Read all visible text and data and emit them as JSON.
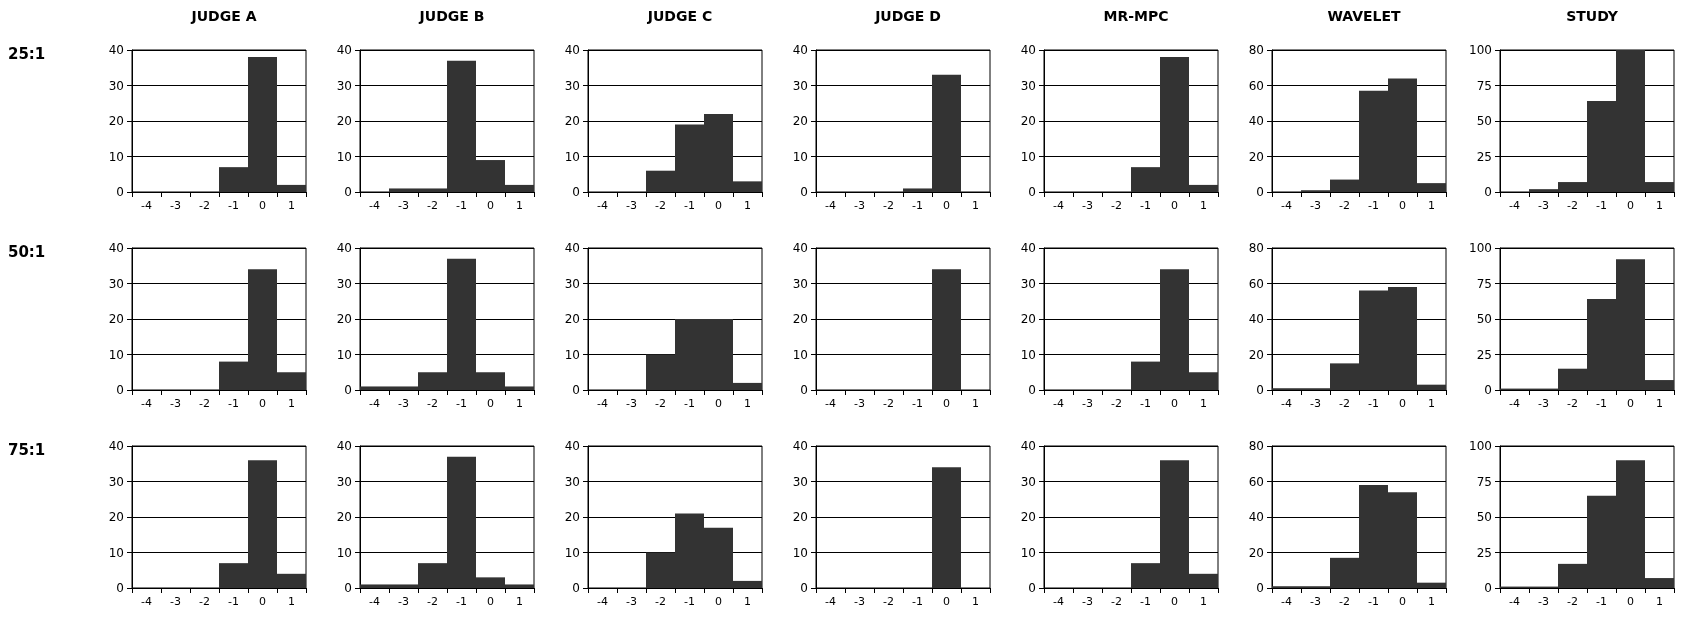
{
  "chart_data": [
    {
      "type": "bar",
      "title": "JUDGE A",
      "ylabel": "25:1",
      "categories": [
        "-4",
        "-3",
        "-2",
        "-1",
        "0",
        "1"
      ],
      "values": [
        0,
        0,
        0,
        7,
        38,
        2
      ],
      "color": "#333333",
      "ylim": [
        0,
        40
      ],
      "yticks": [
        0,
        10,
        20,
        30,
        40
      ],
      "grid": "y"
    },
    {
      "type": "bar",
      "title": "JUDGE B",
      "categories": [
        "-4",
        "-3",
        "-2",
        "-1",
        "0",
        "1"
      ],
      "values": [
        0,
        1,
        1,
        37,
        9,
        2
      ],
      "color": "#333333",
      "ylim": [
        0,
        40
      ],
      "yticks": [
        0,
        10,
        20,
        30,
        40
      ],
      "grid": "y"
    },
    {
      "type": "bar",
      "title": "JUDGE C",
      "categories": [
        "-4",
        "-3",
        "-2",
        "-1",
        "0",
        "1"
      ],
      "values": [
        0,
        0,
        6,
        19,
        22,
        3
      ],
      "color": "#333333",
      "ylim": [
        0,
        40
      ],
      "yticks": [
        0,
        10,
        20,
        30,
        40
      ],
      "grid": "y"
    },
    {
      "type": "bar",
      "title": "JUDGE D",
      "categories": [
        "-4",
        "-3",
        "-2",
        "-1",
        "0",
        "1"
      ],
      "values": [
        0,
        0,
        0,
        1,
        33,
        0
      ],
      "color": "#333333",
      "ylim": [
        0,
        40
      ],
      "yticks": [
        0,
        10,
        20,
        30,
        40
      ],
      "grid": "y"
    },
    {
      "type": "bar",
      "title": "MR-MPC",
      "categories": [
        "-4",
        "-3",
        "-2",
        "-1",
        "0",
        "1"
      ],
      "values": [
        0,
        0,
        0,
        7,
        38,
        2
      ],
      "color": "#333333",
      "ylim": [
        0,
        40
      ],
      "yticks": [
        0,
        10,
        20,
        30,
        40
      ],
      "grid": "y"
    },
    {
      "type": "bar",
      "title": "WAVELET",
      "categories": [
        "-4",
        "-3",
        "-2",
        "-1",
        "0",
        "1"
      ],
      "values": [
        0,
        1,
        7,
        57,
        64,
        5
      ],
      "color": "#333333",
      "ylim": [
        0,
        80
      ],
      "yticks": [
        0,
        20,
        40,
        60,
        80
      ],
      "grid": "y"
    },
    {
      "type": "bar",
      "title": "STUDY",
      "categories": [
        "-4",
        "-3",
        "-2",
        "-1",
        "0",
        "1"
      ],
      "values": [
        0,
        2,
        7,
        64,
        100,
        7
      ],
      "color": "#333333",
      "ylim": [
        0,
        100
      ],
      "yticks": [
        0,
        25,
        50,
        75,
        100
      ],
      "grid": "y"
    },
    {
      "type": "bar",
      "ylabel": "50:1",
      "categories": [
        "-4",
        "-3",
        "-2",
        "-1",
        "0",
        "1"
      ],
      "values": [
        0,
        0,
        0,
        8,
        34,
        5
      ],
      "color": "#333333",
      "ylim": [
        0,
        40
      ],
      "yticks": [
        0,
        10,
        20,
        30,
        40
      ],
      "grid": "y"
    },
    {
      "type": "bar",
      "categories": [
        "-4",
        "-3",
        "-2",
        "-1",
        "0",
        "1"
      ],
      "values": [
        1,
        1,
        5,
        37,
        5,
        1
      ],
      "color": "#333333",
      "ylim": [
        0,
        40
      ],
      "yticks": [
        0,
        10,
        20,
        30,
        40
      ],
      "grid": "y"
    },
    {
      "type": "bar",
      "categories": [
        "-4",
        "-3",
        "-2",
        "-1",
        "0",
        "1"
      ],
      "values": [
        0,
        0,
        10,
        20,
        20,
        2
      ],
      "color": "#333333",
      "ylim": [
        0,
        40
      ],
      "yticks": [
        0,
        10,
        20,
        30,
        40
      ],
      "grid": "y"
    },
    {
      "type": "bar",
      "categories": [
        "-4",
        "-3",
        "-2",
        "-1",
        "0",
        "1"
      ],
      "values": [
        0,
        0,
        0,
        0,
        34,
        0
      ],
      "color": "#333333",
      "ylim": [
        0,
        40
      ],
      "yticks": [
        0,
        10,
        20,
        30,
        40
      ],
      "grid": "y"
    },
    {
      "type": "bar",
      "categories": [
        "-4",
        "-3",
        "-2",
        "-1",
        "0",
        "1"
      ],
      "values": [
        0,
        0,
        0,
        8,
        34,
        5
      ],
      "color": "#333333",
      "ylim": [
        0,
        40
      ],
      "yticks": [
        0,
        10,
        20,
        30,
        40
      ],
      "grid": "y"
    },
    {
      "type": "bar",
      "categories": [
        "-4",
        "-3",
        "-2",
        "-1",
        "0",
        "1"
      ],
      "values": [
        1,
        1,
        15,
        56,
        58,
        3
      ],
      "color": "#333333",
      "ylim": [
        0,
        80
      ],
      "yticks": [
        0,
        20,
        40,
        60,
        80
      ],
      "grid": "y"
    },
    {
      "type": "bar",
      "categories": [
        "-4",
        "-3",
        "-2",
        "-1",
        "0",
        "1"
      ],
      "values": [
        1,
        1,
        15,
        64,
        92,
        7
      ],
      "color": "#333333",
      "ylim": [
        0,
        100
      ],
      "yticks": [
        0,
        25,
        50,
        75,
        100
      ],
      "grid": "y"
    },
    {
      "type": "bar",
      "ylabel": "75:1",
      "categories": [
        "-4",
        "-3",
        "-2",
        "-1",
        "0",
        "1"
      ],
      "values": [
        0,
        0,
        0,
        7,
        36,
        4
      ],
      "color": "#333333",
      "ylim": [
        0,
        40
      ],
      "yticks": [
        0,
        10,
        20,
        30,
        40
      ],
      "grid": "y"
    },
    {
      "type": "bar",
      "categories": [
        "-4",
        "-3",
        "-2",
        "-1",
        "0",
        "1"
      ],
      "values": [
        1,
        1,
        7,
        37,
        3,
        1
      ],
      "color": "#333333",
      "ylim": [
        0,
        40
      ],
      "yticks": [
        0,
        10,
        20,
        30,
        40
      ],
      "grid": "y"
    },
    {
      "type": "bar",
      "categories": [
        "-4",
        "-3",
        "-2",
        "-1",
        "0",
        "1"
      ],
      "values": [
        0,
        0,
        10,
        21,
        17,
        2
      ],
      "color": "#333333",
      "ylim": [
        0,
        40
      ],
      "yticks": [
        0,
        10,
        20,
        30,
        40
      ],
      "grid": "y"
    },
    {
      "type": "bar",
      "categories": [
        "-4",
        "-3",
        "-2",
        "-1",
        "0",
        "1"
      ],
      "values": [
        0,
        0,
        0,
        0,
        34,
        0
      ],
      "color": "#333333",
      "ylim": [
        0,
        40
      ],
      "yticks": [
        0,
        10,
        20,
        30,
        40
      ],
      "grid": "y"
    },
    {
      "type": "bar",
      "categories": [
        "-4",
        "-3",
        "-2",
        "-1",
        "0",
        "1"
      ],
      "values": [
        0,
        0,
        0,
        7,
        36,
        4
      ],
      "color": "#333333",
      "ylim": [
        0,
        40
      ],
      "yticks": [
        0,
        10,
        20,
        30,
        40
      ],
      "grid": "y"
    },
    {
      "type": "bar",
      "categories": [
        "-4",
        "-3",
        "-2",
        "-1",
        "0",
        "1"
      ],
      "values": [
        1,
        1,
        17,
        58,
        54,
        3
      ],
      "color": "#333333",
      "ylim": [
        0,
        80
      ],
      "yticks": [
        0,
        20,
        40,
        60,
        80
      ],
      "grid": "y"
    },
    {
      "type": "bar",
      "categories": [
        "-4",
        "-3",
        "-2",
        "-1",
        "0",
        "1"
      ],
      "values": [
        1,
        1,
        17,
        65,
        90,
        7
      ],
      "color": "#333333",
      "ylim": [
        0,
        100
      ],
      "yticks": [
        0,
        25,
        50,
        75,
        100
      ],
      "grid": "y"
    }
  ]
}
